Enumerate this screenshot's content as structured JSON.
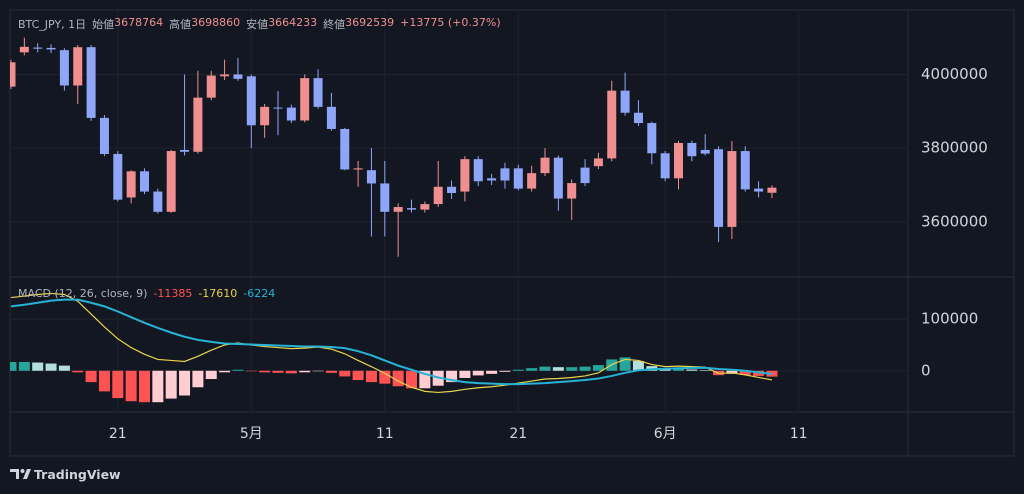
{
  "chart_data": [
    {
      "type": "candlestick",
      "title": "BTC_JPY, 1日",
      "ohlc_labels": [
        "始値",
        "高値",
        "安値",
        "終値"
      ],
      "change": "+13775 (+0.37%)",
      "categories": [
        null,
        null,
        null,
        null,
        null,
        null,
        null,
        null,
        "21",
        null,
        null,
        null,
        null,
        null,
        null,
        null,
        null,
        null,
        "5月",
        null,
        null,
        null,
        null,
        null,
        null,
        null,
        null,
        null,
        "11",
        null,
        null,
        null,
        null,
        null,
        null,
        null,
        null,
        null,
        "21",
        null,
        null,
        null,
        null,
        null,
        null,
        null,
        null,
        null,
        null,
        "6月",
        null,
        null,
        null,
        null,
        null,
        null,
        null,
        null,
        null,
        "11"
      ],
      "open": [
        3967000,
        4060000,
        4073000,
        4072000,
        4066000,
        3970000,
        4074000,
        3882000,
        3784000,
        3666000,
        3737000,
        3682000,
        3627000,
        3795000,
        3790000,
        3937000,
        3995000,
        4000000,
        3995000,
        3862000,
        3910000,
        3910000,
        3875000,
        3990000,
        3912000,
        3852000,
        3742000,
        3740000,
        3704000,
        3627000,
        3637000,
        3633000,
        3648000,
        3695000,
        3682000,
        3770000,
        3718000,
        3745000,
        3745000,
        3690000,
        3732000,
        3774000,
        3663000,
        3747000,
        3751000,
        3772000,
        3956000,
        3896000,
        3868000,
        3786000,
        3718000,
        3814000,
        3795000,
        3797000,
        3586000,
        3792000,
        3690000,
        3678764,
        null,
        null
      ],
      "high": [
        4040000,
        4100000,
        4085000,
        4082000,
        4071000,
        4080000,
        4080000,
        3890000,
        3792000,
        3740000,
        3745000,
        3690000,
        3795000,
        4000000,
        4010000,
        4010000,
        4040000,
        4045000,
        4000000,
        3920000,
        3955000,
        3918000,
        4000000,
        4014000,
        3950000,
        3855000,
        3765000,
        3800000,
        3765000,
        3650000,
        3660000,
        3655000,
        3765000,
        3712000,
        3778000,
        3778000,
        3730000,
        3760000,
        3755000,
        3752000,
        3800000,
        3780000,
        3715000,
        3770000,
        3787000,
        3983000,
        4005000,
        3930000,
        3872000,
        3792000,
        3820000,
        3820000,
        3838000,
        3805000,
        3819000,
        3805000,
        3710000,
        3698860,
        null,
        null
      ],
      "low": [
        3960000,
        4052000,
        4060000,
        4058000,
        3956000,
        3920000,
        3874000,
        3778000,
        3655000,
        3650000,
        3675000,
        3622000,
        3624000,
        3780000,
        3785000,
        3930000,
        3985000,
        3983000,
        3800000,
        3828000,
        3835000,
        3868000,
        3870000,
        3907000,
        3847000,
        3740000,
        3695000,
        3560000,
        3560000,
        3505000,
        3625000,
        3625000,
        3640000,
        3662000,
        3655000,
        3697000,
        3700000,
        3690000,
        3685000,
        3682000,
        3724000,
        3630000,
        3605000,
        3697000,
        3743000,
        3764000,
        3888000,
        3860000,
        3756000,
        3710000,
        3688000,
        3764000,
        3780000,
        3545000,
        3553000,
        3682000,
        3666000,
        3664233,
        null,
        null
      ],
      "close": [
        4033000,
        4075000,
        4070000,
        4068000,
        3970000,
        4074000,
        3882000,
        3784000,
        3660000,
        3737000,
        3682000,
        3627000,
        3792000,
        3790000,
        3937000,
        3997000,
        4000000,
        3988000,
        3862000,
        3912000,
        3908000,
        3875000,
        3990000,
        3912000,
        3852000,
        3742000,
        3745000,
        3704000,
        3627000,
        3640000,
        3633000,
        3648000,
        3695000,
        3678000,
        3770000,
        3710000,
        3712000,
        3712000,
        3690000,
        3732000,
        3774000,
        3663000,
        3705000,
        3705000,
        3772000,
        3956000,
        3896000,
        3868000,
        3786000,
        3718000,
        3814000,
        3778000,
        3785000,
        3586000,
        3792000,
        3688000,
        3682000,
        3692539,
        null,
        null
      ],
      "up_color": "#ef8f8f",
      "down_color": "#8fa6f8",
      "ylim": [
        3450000,
        4175000
      ],
      "yticks": [
        3600000,
        3800000,
        4000000
      ],
      "grid": true
    },
    {
      "type": "macd",
      "title": "MACD (12, 26, close, 9)",
      "series": [
        {
          "style": "histogram",
          "color": "#ff5252",
          "colors": [
            "#26a69a",
            "#b2dfdb",
            "#ff5252",
            "#ffcdd2"
          ],
          "values": [
            17000,
            17000,
            16000,
            14000,
            10000,
            -3000,
            -22000,
            -40000,
            -53000,
            -59000,
            -61000,
            -61000,
            -54000,
            -48000,
            -32000,
            -16000,
            -3000,
            2000,
            -1000,
            -3000,
            -4000,
            -5000,
            -3000,
            -1000,
            -4000,
            -11000,
            -18000,
            -22000,
            -25000,
            -30000,
            -34000,
            -34000,
            -29000,
            -22000,
            -14000,
            -9000,
            -6000,
            -2000,
            2000,
            5000,
            8000,
            7000,
            7000,
            8000,
            11000,
            22000,
            26000,
            19000,
            9000,
            4000,
            4000,
            2500,
            1200,
            -8500,
            -6000,
            -8000,
            -10000,
            -11385,
            null,
            null
          ]
        },
        {
          "style": "line",
          "color": "#e8d44d",
          "values": [
            142000,
            145000,
            148000,
            150000,
            148000,
            135000,
            110000,
            85000,
            62000,
            45000,
            32000,
            22000,
            20000,
            18000,
            28000,
            40000,
            50000,
            54000,
            50000,
            47000,
            45000,
            43000,
            44000,
            46000,
            42000,
            33000,
            20000,
            8000,
            -5000,
            -20000,
            -32000,
            -40000,
            -42000,
            -40000,
            -36000,
            -33000,
            -31000,
            -28000,
            -24000,
            -20000,
            -16000,
            -15000,
            -13000,
            -10000,
            -4000,
            12000,
            22000,
            20000,
            12000,
            8000,
            9000,
            8000,
            7000,
            -5000,
            -4000,
            -8000,
            -13000,
            -17610,
            null,
            null
          ]
        },
        {
          "style": "line",
          "color": "#26b3d6",
          "values": [
            125000,
            128000,
            132000,
            136000,
            138000,
            138000,
            132000,
            125000,
            115000,
            104000,
            93000,
            83000,
            74000,
            66000,
            60000,
            56000,
            53000,
            52000,
            51000,
            50000,
            49000,
            48000,
            47000,
            47000,
            46000,
            44000,
            38000,
            30000,
            20000,
            10000,
            2000,
            -6000,
            -13000,
            -18000,
            -22000,
            -24000,
            -25000,
            -26000,
            -26000,
            -25000,
            -24000,
            -22000,
            -20000,
            -18000,
            -15000,
            -10000,
            -4000,
            1000,
            3000,
            4000,
            5000,
            5500,
            5800,
            3500,
            2000,
            0,
            -3000,
            -6224,
            null,
            null
          ]
        }
      ],
      "ylim": [
        -80000,
        180000
      ],
      "yticks": [
        0,
        100000
      ],
      "grid": true
    }
  ],
  "branding": "TradingView"
}
